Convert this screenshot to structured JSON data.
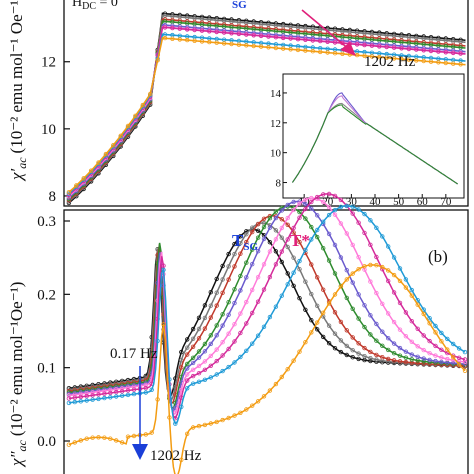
{
  "chart_data": [
    {
      "panel": "a",
      "type": "line",
      "annotation": "H",
      "annotation_sub": "DC",
      "annotation_rest": " = 0",
      "sg_label_sub": "SG",
      "freq_label": "1202 Hz",
      "ylabel_main": "χ′",
      "ylabel_sub": "ac",
      "ylabel_units": "(10⁻² emu mol⁻¹ Oe⁻¹)",
      "xlim": [
        3,
        85
      ],
      "ylim": [
        7.7,
        13.9
      ],
      "yticks": [
        8,
        10,
        12
      ],
      "series_colors": [
        "#111111",
        "#777777",
        "#c0392b",
        "#2e8b2e",
        "#6a5acd",
        "#ff7ad9",
        "#d42a9a",
        "#1f9ad6",
        "#f39c12"
      ],
      "peak_values": [
        13.6,
        13.5,
        13.35,
        13.25,
        13.1,
        13.0,
        12.95,
        12.7,
        12.55
      ],
      "inset": {
        "xticks": [
          10,
          20,
          30,
          40,
          50,
          60,
          70
        ],
        "yticks": [
          8,
          10,
          12,
          14
        ],
        "xlim": [
          4,
          76
        ],
        "ylim": [
          7.5,
          15
        ]
      }
    },
    {
      "panel": "b",
      "type": "line",
      "panel_label": "(b)",
      "tsg_label": "T",
      "tsg_sub": "SG",
      "tstar_label": "T*",
      "low_freq_label": "0.17 Hz",
      "high_freq_label": "1202 Hz",
      "ylabel_main": "χ″",
      "ylabel_sub": "ac",
      "ylabel_units": "(10⁻² emu mol⁻¹Oe⁻¹)",
      "xlim": [
        3,
        85
      ],
      "ylim": [
        -0.045,
        0.315
      ],
      "yticks": [
        0.0,
        0.1,
        0.2,
        0.3
      ],
      "ytick_labels": [
        "0.0",
        "0.1",
        "0.2",
        "0.3"
      ],
      "series_colors": [
        "#111111",
        "#777777",
        "#c0392b",
        "#2e8b2e",
        "#6a5acd",
        "#ff7ad9",
        "#d42a9a",
        "#1f9ad6",
        "#f39c12"
      ],
      "baselines": [
        0.072,
        0.07,
        0.068,
        0.066,
        0.064,
        0.062,
        0.058,
        0.052,
        -0.005
      ],
      "tsg_peaks": [
        0.245,
        0.248,
        0.25,
        0.255,
        0.246,
        0.242,
        0.238,
        0.222,
        0.145
      ],
      "broad_peaks": [
        0.255,
        0.262,
        0.27,
        0.28,
        0.285,
        0.287,
        0.29,
        0.27,
        0.185
      ],
      "broad_peak_T": [
        41,
        43,
        45,
        48,
        50,
        53,
        56,
        60,
        65
      ]
    }
  ]
}
